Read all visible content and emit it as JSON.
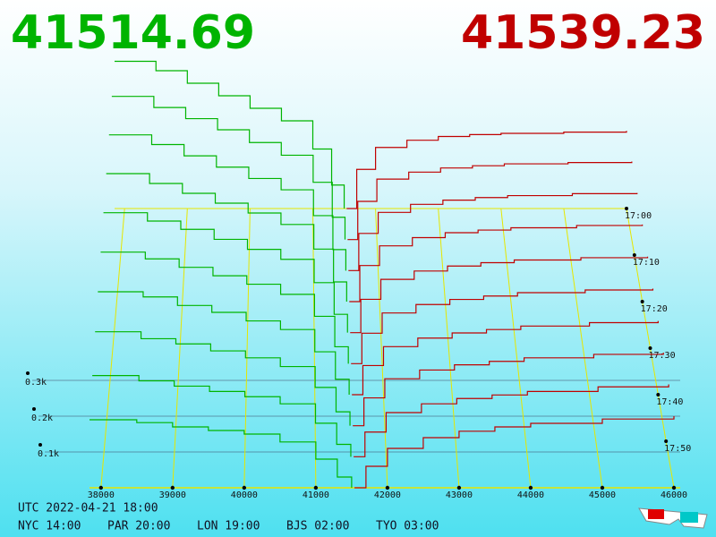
{
  "chart_data": {
    "type": "depth3d",
    "bid_price": 41514.69,
    "ask_price": 41539.23,
    "bid_color": "#00b400",
    "ask_color": "#c00000",
    "axis_color": "#e6e600",
    "xlim": [
      37840,
      46000
    ],
    "xticks": [
      38000,
      39000,
      40000,
      41000,
      42000,
      43000,
      44000,
      45000,
      46000
    ],
    "ylim": [
      0,
      500
    ],
    "yticks": [
      {
        "value": 100,
        "label": "0.1k"
      },
      {
        "value": 200,
        "label": "0.2k"
      },
      {
        "value": 300,
        "label": "0.3k"
      }
    ],
    "times": [
      "17:00",
      "17:10",
      "17:20",
      "17:30",
      "17:40",
      "17:50"
    ],
    "bid_x": [
      37840,
      38500,
      39000,
      39500,
      40000,
      40500,
      41000,
      41300,
      41500
    ],
    "ask_x": [
      41540,
      41700,
      42000,
      42500,
      43000,
      43500,
      44000,
      45000,
      46000
    ],
    "snapshots": [
      {
        "bids": [
          190,
          182,
          170,
          160,
          150,
          128,
          80,
          30,
          0
        ],
        "asks": [
          0,
          60,
          110,
          140,
          158,
          170,
          180,
          192,
          200
        ]
      },
      {
        "bids": [
          230,
          215,
          200,
          185,
          170,
          150,
          95,
          35,
          0
        ],
        "asks": [
          0,
          70,
          125,
          150,
          165,
          175,
          185,
          198,
          205
        ]
      },
      {
        "bids": [
          270,
          250,
          235,
          215,
          195,
          170,
          110,
          40,
          0
        ],
        "asks": [
          0,
          80,
          135,
          160,
          175,
          185,
          195,
          205,
          210
        ]
      },
      {
        "bids": [
          300,
          285,
          260,
          240,
          215,
          190,
          125,
          45,
          0
        ],
        "asks": [
          0,
          85,
          140,
          165,
          180,
          190,
          200,
          210,
          215
        ]
      },
      {
        "bids": [
          330,
          310,
          285,
          260,
          235,
          205,
          140,
          50,
          0
        ],
        "asks": [
          0,
          90,
          150,
          175,
          190,
          200,
          210,
          218,
          222
        ]
      },
      {
        "bids": [
          360,
          335,
          310,
          280,
          250,
          220,
          150,
          55,
          0
        ],
        "asks": [
          0,
          100,
          160,
          185,
          200,
          210,
          218,
          225,
          228
        ]
      },
      {
        "bids": [
          390,
          360,
          330,
          300,
          270,
          235,
          160,
          60,
          0
        ],
        "asks": [
          0,
          110,
          170,
          195,
          210,
          218,
          225,
          232,
          235
        ]
      },
      {
        "bids": [
          420,
          390,
          355,
          320,
          285,
          250,
          170,
          65,
          0
        ],
        "asks": [
          0,
          115,
          180,
          205,
          218,
          226,
          232,
          238,
          240
        ]
      },
      {
        "bids": [
          450,
          415,
          380,
          345,
          305,
          265,
          180,
          70,
          0
        ],
        "asks": [
          0,
          120,
          190,
          212,
          225,
          232,
          238,
          242,
          245
        ]
      },
      {
        "bids": [
          470,
          440,
          400,
          360,
          320,
          280,
          190,
          75,
          0
        ],
        "asks": [
          0,
          125,
          195,
          218,
          230,
          236,
          240,
          244,
          248
        ]
      }
    ]
  },
  "footer": {
    "utc": "UTC 2022-04-21 18:00",
    "zones": [
      "NYC 14:00",
      "PAR 20:00",
      "LON 19:00",
      "BJS 02:00",
      "TYO 03:00"
    ]
  }
}
